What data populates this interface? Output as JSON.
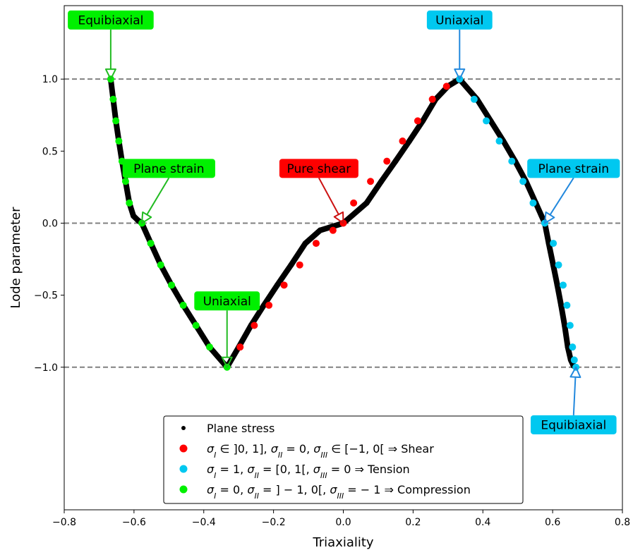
{
  "chart_data": {
    "type": "scatter",
    "xlabel": "Triaxiality",
    "ylabel": "Lode parameter",
    "xlim": [
      -0.8,
      0.8
    ],
    "ylim": [
      -1.99,
      1.51
    ],
    "x_ticks": [
      -0.8,
      -0.6,
      -0.4,
      -0.2,
      0.0,
      0.2,
      0.4,
      0.6,
      0.8
    ],
    "x_tick_labels": [
      "−0.8",
      "−0.6",
      "−0.4",
      "−0.2",
      "0.0",
      "0.2",
      "0.4",
      "0.6",
      "0.8"
    ],
    "y_ticks": [
      1.0,
      0.5,
      0.0,
      -0.5,
      -1.0
    ],
    "y_tick_labels": [
      "1.0",
      "0.5",
      "0.0",
      "−0.5",
      "−1.0"
    ],
    "hlines": [
      1.0,
      0.0,
      -1.0
    ],
    "grid": false,
    "legend_position": "lower center",
    "series": [
      {
        "name": "Plane stress",
        "color": "#000000",
        "marker": "dense black curve",
        "x": [
          -0.6667,
          -0.6597,
          -0.652,
          -0.6435,
          -0.6343,
          -0.6242,
          -0.6133,
          -0.6015,
          -0.5888,
          -0.5774,
          -0.5517,
          -0.5235,
          -0.4925,
          -0.4588,
          -0.4224,
          -0.3833,
          -0.3333,
          -0.2998,
          -0.2645,
          -0.2277,
          -0.1894,
          -0.1497,
          -0.1088,
          -0.0667,
          0.0,
          0.0667,
          0.1088,
          0.1497,
          0.1894,
          0.2277,
          0.2645,
          0.2998,
          0.3333,
          0.3833,
          0.4224,
          0.4588,
          0.4925,
          0.5235,
          0.5517,
          0.5774,
          0.5888,
          0.6015,
          0.6133,
          0.6242,
          0.6343,
          0.6435,
          0.652,
          0.6597,
          0.6667
        ],
        "y": [
          1.0,
          0.86,
          0.71,
          0.57,
          0.43,
          0.29,
          0.14,
          0.05,
          0.02,
          0.0,
          -0.14,
          -0.29,
          -0.43,
          -0.57,
          -0.71,
          -0.86,
          -1.0,
          -0.86,
          -0.71,
          -0.57,
          -0.43,
          -0.29,
          -0.14,
          -0.05,
          0.0,
          0.14,
          0.29,
          0.43,
          0.57,
          0.71,
          0.86,
          0.95,
          1.0,
          0.86,
          0.71,
          0.57,
          0.43,
          0.29,
          0.14,
          0.0,
          -0.14,
          -0.29,
          -0.43,
          -0.57,
          -0.71,
          -0.86,
          -0.95,
          -0.99,
          -1.0
        ]
      },
      {
        "name": "σI ∈ ]0, 1], σII = 0, σIII ∈ [−1, 0[ ⇒ Shear",
        "color": "#ff0000",
        "x": [
          -0.2958,
          -0.2552,
          -0.2132,
          -0.1698,
          -0.1249,
          -0.078,
          -0.0296,
          0.0,
          0.0296,
          0.078,
          0.1249,
          0.1698,
          0.2132,
          0.2552,
          0.2958,
          0.3333
        ],
        "y": [
          -0.86,
          -0.71,
          -0.57,
          -0.43,
          -0.29,
          -0.14,
          -0.05,
          0.0,
          0.14,
          0.29,
          0.43,
          0.57,
          0.71,
          0.86,
          0.95,
          1.0
        ]
      },
      {
        "name": "σI = 1, σII = [0, 1[, σIII = 0 ⇒ Tension",
        "color": "#00c8f0",
        "x": [
          0.3333,
          0.375,
          0.4098,
          0.447,
          0.483,
          0.515,
          0.544,
          0.5774,
          0.602,
          0.617,
          0.63,
          0.641,
          0.65,
          0.657,
          0.662,
          0.6667
        ],
        "y": [
          1.0,
          0.86,
          0.71,
          0.57,
          0.43,
          0.29,
          0.14,
          0.0,
          -0.14,
          -0.29,
          -0.43,
          -0.57,
          -0.71,
          -0.86,
          -0.95,
          -1.0
        ]
      },
      {
        "name": "σI = 0, σII = ]−1, 0[, σIII = −1 ⇒ Compression",
        "color": "#00f000",
        "x": [
          -0.6667,
          -0.6597,
          -0.652,
          -0.6435,
          -0.6343,
          -0.6242,
          -0.6133,
          -0.5774,
          -0.552,
          -0.5235,
          -0.4925,
          -0.4588,
          -0.4224,
          -0.3833,
          -0.3333
        ],
        "y": [
          1.0,
          0.86,
          0.71,
          0.57,
          0.43,
          0.29,
          0.14,
          0.0,
          -0.14,
          -0.29,
          -0.43,
          -0.57,
          -0.71,
          -0.86,
          -1.0
        ]
      }
    ],
    "legend": [
      {
        "color": "#000000",
        "size": "small",
        "parts": [
          {
            "t": "Plane stress"
          }
        ]
      },
      {
        "color": "#ff0000",
        "size": "large",
        "parts": [
          {
            "t": "σ",
            "i": true
          },
          {
            "t": "I",
            "sub": true
          },
          {
            "t": " ∈ ]0, 1], "
          },
          {
            "t": "σ",
            "i": true
          },
          {
            "t": "II",
            "sub": true
          },
          {
            "t": " = 0, "
          },
          {
            "t": "σ",
            "i": true
          },
          {
            "t": "III",
            "sub": true
          },
          {
            "t": " ∈ [−1, 0[  ⇒  Shear"
          }
        ]
      },
      {
        "color": "#00c8f0",
        "size": "large",
        "parts": [
          {
            "t": "σ",
            "i": true
          },
          {
            "t": "I",
            "sub": true
          },
          {
            "t": " = 1, "
          },
          {
            "t": "σ",
            "i": true
          },
          {
            "t": "II",
            "sub": true
          },
          {
            "t": " = [0, 1[, "
          },
          {
            "t": "σ",
            "i": true
          },
          {
            "t": "III",
            "sub": true
          },
          {
            "t": " = 0  ⇒  Tension"
          }
        ]
      },
      {
        "color": "#00f000",
        "size": "large",
        "parts": [
          {
            "t": "σ",
            "i": true
          },
          {
            "t": "I",
            "sub": true
          },
          {
            "t": " = 0, "
          },
          {
            "t": "σ",
            "i": true
          },
          {
            "t": "II",
            "sub": true
          },
          {
            "t": " = ] − 1, 0[, "
          },
          {
            "t": "σ",
            "i": true
          },
          {
            "t": "III",
            "sub": true
          },
          {
            "t": " = − 1  ⇒  Compression"
          }
        ]
      }
    ],
    "annotations": [
      {
        "text": "Equibiaxial",
        "bg": "#00f000",
        "arrow": "#22bb22",
        "tx": -0.6667,
        "ty": 1.41,
        "px": -0.6667,
        "py": 1.0
      },
      {
        "text": "Plane strain",
        "bg": "#00f000",
        "arrow": "#22bb22",
        "tx": -0.5,
        "ty": 0.38,
        "px": -0.5774,
        "py": 0.0
      },
      {
        "text": "Uniaxial",
        "bg": "#00f000",
        "arrow": "#22bb22",
        "tx": -0.3333,
        "ty": -0.54,
        "px": -0.3333,
        "py": -1.0
      },
      {
        "text": "Pure shear",
        "bg": "#ff0000",
        "arrow": "#cc1111",
        "tx": -0.07,
        "ty": 0.38,
        "px": 0.0,
        "py": 0.0
      },
      {
        "text": "Uniaxial",
        "bg": "#00c8f0",
        "arrow": "#2288dd",
        "tx": 0.3333,
        "ty": 1.41,
        "px": 0.3333,
        "py": 1.0
      },
      {
        "text": "Plane strain",
        "bg": "#00c8f0",
        "arrow": "#2288dd",
        "tx": 0.66,
        "ty": 0.38,
        "px": 0.5774,
        "py": 0.0
      },
      {
        "text": "Equibiaxial",
        "bg": "#00c8f0",
        "arrow": "#2288dd",
        "tx": 0.66,
        "ty": -1.4,
        "px": 0.6667,
        "py": -1.0
      }
    ]
  }
}
